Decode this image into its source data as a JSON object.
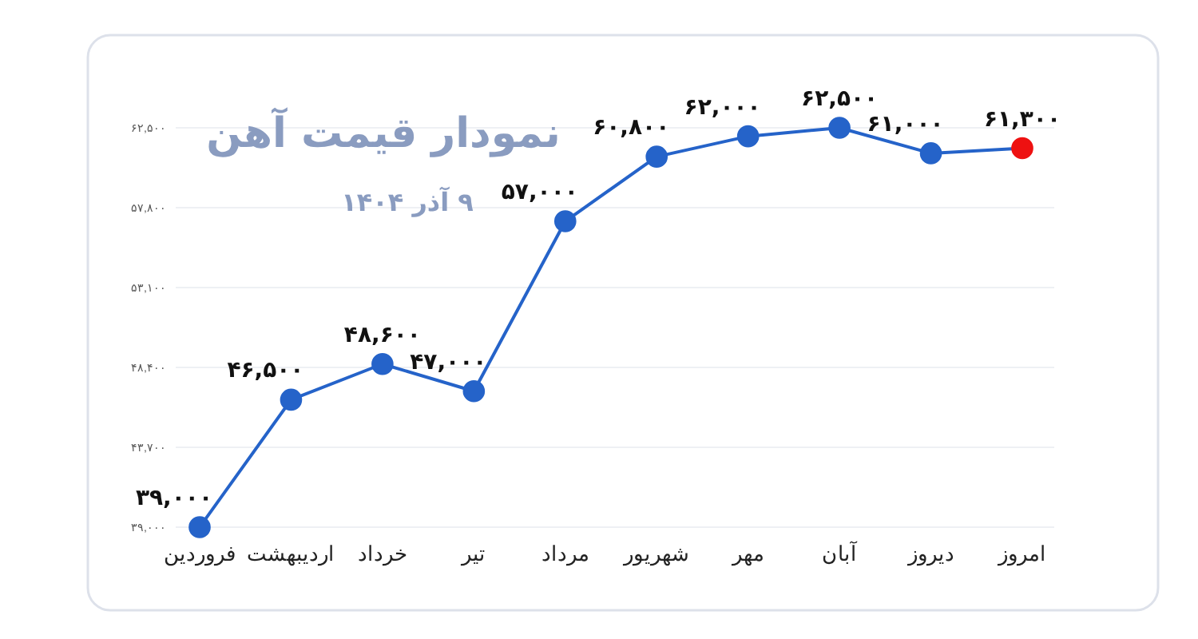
{
  "chart_data": {
    "type": "line",
    "title": "نمودار قیمت آهن",
    "subtitle": "۹ آذر ۱۴۰۴",
    "categories": [
      "فروردین",
      "اردیبهشت",
      "خرداد",
      "تیر",
      "مرداد",
      "شهریور",
      "مهر",
      "آبان",
      "دیروز",
      "امروز"
    ],
    "series": [
      {
        "color": "#2563c9",
        "colors": [
          "#2563c9",
          "#2563c9",
          "#2563c9",
          "#2563c9",
          "#2563c9",
          "#2563c9",
          "#2563c9",
          "#2563c9",
          "#2563c9",
          "#ee1111"
        ],
        "values": [
          39000,
          46500,
          48600,
          47000,
          57000,
          60800,
          62000,
          62500,
          61000,
          61300
        ],
        "value_labels": [
          "۳۹,۰۰۰",
          "۴۶,۵۰۰",
          "۴۸,۶۰۰",
          "۴۷,۰۰۰",
          "۵۷,۰۰۰",
          "۶۰,۸۰۰",
          "۶۲,۰۰۰",
          "۶۲,۵۰۰",
          "۶۱,۰۰۰",
          "۶۱,۳۰۰"
        ]
      }
    ],
    "ylim": [
      39000,
      62500
    ],
    "yticks": [
      {
        "value": 39000,
        "label": "۳۹,۰۰۰"
      },
      {
        "value": 43700,
        "label": "۴۳,۷۰۰"
      },
      {
        "value": 48400,
        "label": "۴۸,۴۰۰"
      },
      {
        "value": 53100,
        "label": "۵۳,۱۰۰"
      },
      {
        "value": 57800,
        "label": "۵۷,۸۰۰"
      },
      {
        "value": 62500,
        "label": "۶۲,۵۰۰"
      }
    ],
    "grid": "y",
    "marker": "circle",
    "line_style": "solid"
  }
}
